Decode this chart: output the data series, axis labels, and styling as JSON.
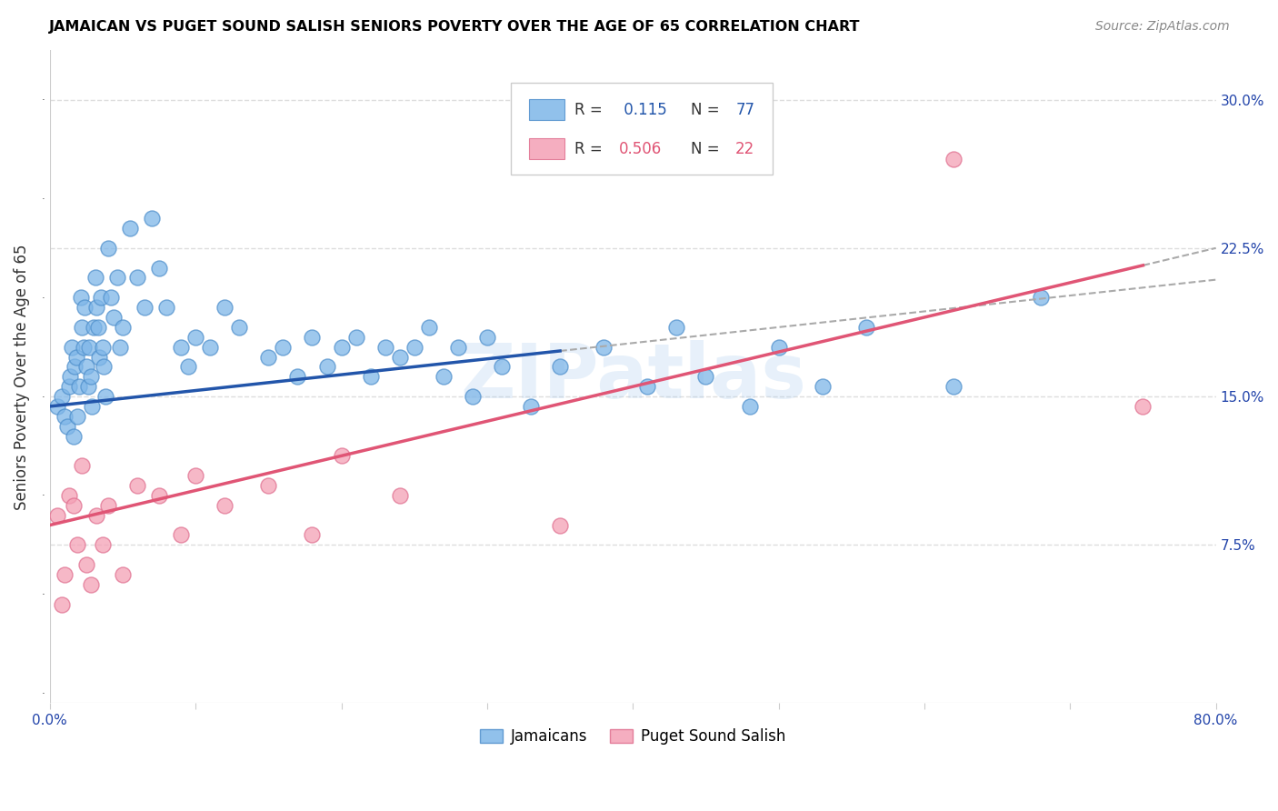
{
  "title": "JAMAICAN VS PUGET SOUND SALISH SENIORS POVERTY OVER THE AGE OF 65 CORRELATION CHART",
  "source": "Source: ZipAtlas.com",
  "ylabel": "Seniors Poverty Over the Age of 65",
  "xlim": [
    0.0,
    0.8
  ],
  "ylim": [
    -0.005,
    0.325
  ],
  "xtick_pos": [
    0.0,
    0.1,
    0.2,
    0.3,
    0.4,
    0.5,
    0.6,
    0.7,
    0.8
  ],
  "xtick_labels": [
    "0.0%",
    "",
    "",
    "",
    "",
    "",
    "",
    "",
    "80.0%"
  ],
  "ytick_pos": [
    0.075,
    0.15,
    0.225,
    0.3
  ],
  "ytick_labels": [
    "7.5%",
    "15.0%",
    "22.5%",
    "30.0%"
  ],
  "blue_color": "#7EB6E8",
  "pink_color": "#F4A0B5",
  "blue_edge_color": "#5090CC",
  "pink_edge_color": "#E07090",
  "blue_line_color": "#2255AA",
  "pink_line_color": "#E05575",
  "watermark": "ZIPatlas",
  "blue_x": [
    0.005,
    0.008,
    0.01,
    0.012,
    0.013,
    0.014,
    0.015,
    0.016,
    0.017,
    0.018,
    0.019,
    0.02,
    0.021,
    0.022,
    0.023,
    0.024,
    0.025,
    0.026,
    0.027,
    0.028,
    0.029,
    0.03,
    0.031,
    0.032,
    0.033,
    0.034,
    0.035,
    0.036,
    0.037,
    0.038,
    0.04,
    0.042,
    0.044,
    0.046,
    0.048,
    0.05,
    0.055,
    0.06,
    0.065,
    0.07,
    0.075,
    0.08,
    0.09,
    0.095,
    0.1,
    0.11,
    0.12,
    0.13,
    0.15,
    0.16,
    0.17,
    0.18,
    0.19,
    0.2,
    0.21,
    0.22,
    0.23,
    0.24,
    0.25,
    0.26,
    0.27,
    0.28,
    0.29,
    0.3,
    0.31,
    0.33,
    0.35,
    0.38,
    0.41,
    0.43,
    0.45,
    0.48,
    0.5,
    0.53,
    0.56,
    0.62,
    0.68
  ],
  "blue_y": [
    0.145,
    0.15,
    0.14,
    0.135,
    0.155,
    0.16,
    0.175,
    0.13,
    0.165,
    0.17,
    0.14,
    0.155,
    0.2,
    0.185,
    0.175,
    0.195,
    0.165,
    0.155,
    0.175,
    0.16,
    0.145,
    0.185,
    0.21,
    0.195,
    0.185,
    0.17,
    0.2,
    0.175,
    0.165,
    0.15,
    0.225,
    0.2,
    0.19,
    0.21,
    0.175,
    0.185,
    0.235,
    0.21,
    0.195,
    0.24,
    0.215,
    0.195,
    0.175,
    0.165,
    0.18,
    0.175,
    0.195,
    0.185,
    0.17,
    0.175,
    0.16,
    0.18,
    0.165,
    0.175,
    0.18,
    0.16,
    0.175,
    0.17,
    0.175,
    0.185,
    0.16,
    0.175,
    0.15,
    0.18,
    0.165,
    0.145,
    0.165,
    0.175,
    0.155,
    0.185,
    0.16,
    0.145,
    0.175,
    0.155,
    0.185,
    0.155,
    0.2
  ],
  "pink_x": [
    0.005,
    0.008,
    0.01,
    0.013,
    0.016,
    0.019,
    0.022,
    0.025,
    0.028,
    0.032,
    0.036,
    0.04,
    0.05,
    0.06,
    0.075,
    0.09,
    0.1,
    0.12,
    0.15,
    0.18,
    0.2,
    0.24,
    0.35,
    0.62,
    0.75
  ],
  "pink_y": [
    0.09,
    0.045,
    0.06,
    0.1,
    0.095,
    0.075,
    0.115,
    0.065,
    0.055,
    0.09,
    0.075,
    0.095,
    0.06,
    0.105,
    0.1,
    0.08,
    0.11,
    0.095,
    0.105,
    0.08,
    0.12,
    0.1,
    0.085,
    0.27,
    0.145
  ]
}
